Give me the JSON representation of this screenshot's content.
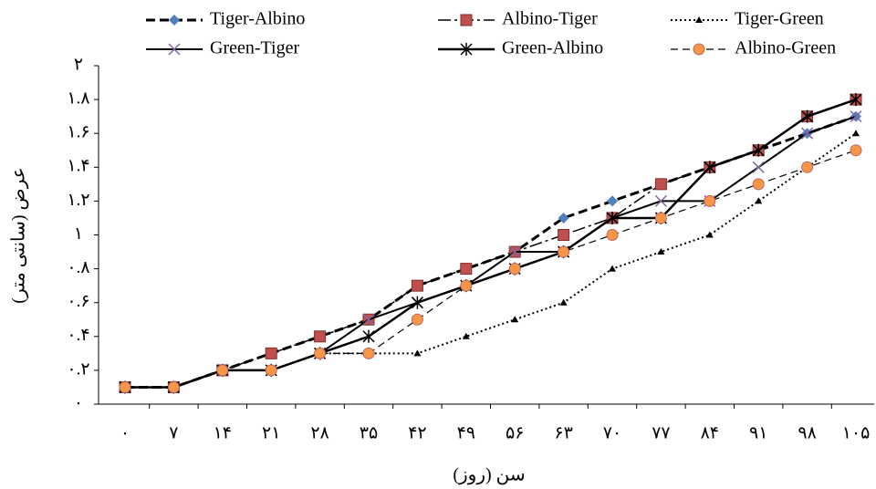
{
  "chart_data": {
    "type": "line",
    "x_label": "سن (روز)",
    "y_label": "عرض (سانتی متر)",
    "categories": [
      "۰",
      "۷",
      "۱۴",
      "۲۱",
      "۲۸",
      "۳۵",
      "۴۲",
      "۴۹",
      "۵۶",
      "۶۳",
      "۷۰",
      "۷۷",
      "۸۴",
      "۹۱",
      "۹۸",
      "۱۰۵"
    ],
    "ylim": [
      0,
      2
    ],
    "yticks": [
      {
        "value": 0,
        "label": "۰"
      },
      {
        "value": 0.2,
        "label": "۰.۲"
      },
      {
        "value": 0.4,
        "label": "۰.۴"
      },
      {
        "value": 0.6,
        "label": "۰.۶"
      },
      {
        "value": 0.8,
        "label": "۰.۸"
      },
      {
        "value": 1,
        "label": "۱"
      },
      {
        "value": 1.2,
        "label": "۱.۲"
      },
      {
        "value": 1.4,
        "label": "۱.۴"
      },
      {
        "value": 1.6,
        "label": "۱.۶"
      },
      {
        "value": 1.8,
        "label": "۱.۸"
      },
      {
        "value": 2,
        "label": "۲"
      }
    ],
    "series": [
      {
        "name": "Tiger-Albino",
        "color": "#4f81bd",
        "line": "#000",
        "dash": "10,5",
        "width": 3,
        "marker": "diamond",
        "values": [
          0.1,
          0.1,
          0.2,
          0.3,
          0.4,
          0.5,
          0.7,
          0.8,
          0.9,
          1.1,
          1.2,
          1.3,
          1.4,
          1.5,
          1.6,
          1.7
        ]
      },
      {
        "name": "Albino-Tiger",
        "color": "#c0504d",
        "line": "#000",
        "dash": "14,4,3,4",
        "width": 1.5,
        "marker": "square",
        "values": [
          0.1,
          0.1,
          0.2,
          0.3,
          0.4,
          0.5,
          0.7,
          0.8,
          0.9,
          1.0,
          1.1,
          1.3,
          1.4,
          1.5,
          1.7,
          1.8
        ]
      },
      {
        "name": "Tiger-Green",
        "color": "#000",
        "line": "#000",
        "dash": "2,3",
        "width": 2,
        "marker": "triangle",
        "values": [
          0.1,
          0.1,
          0.2,
          0.2,
          0.3,
          0.3,
          0.3,
          0.4,
          0.5,
          0.6,
          0.8,
          0.9,
          1.0,
          1.2,
          1.4,
          1.6
        ]
      },
      {
        "name": "Green-Tiger",
        "color": "#8064a2",
        "line": "#000",
        "dash": "",
        "width": 2,
        "marker": "x",
        "values": [
          0.1,
          0.1,
          0.2,
          0.2,
          0.3,
          0.5,
          0.6,
          0.7,
          0.9,
          0.9,
          1.1,
          1.2,
          1.2,
          1.4,
          1.6,
          1.7
        ]
      },
      {
        "name": "Green-Albino",
        "color": "#000",
        "line": "#000",
        "dash": "",
        "width": 2.5,
        "marker": "star",
        "values": [
          0.1,
          0.1,
          0.2,
          0.2,
          0.3,
          0.4,
          0.6,
          0.7,
          0.8,
          0.9,
          1.1,
          1.1,
          1.4,
          1.5,
          1.7,
          1.8
        ]
      },
      {
        "name": "Albino-Green",
        "color": "#f79646",
        "line": "#000",
        "dash": "8,5",
        "width": 1.2,
        "marker": "circle",
        "values": [
          0.1,
          0.1,
          0.2,
          0.2,
          0.3,
          0.3,
          0.5,
          0.7,
          0.8,
          0.9,
          1.0,
          1.1,
          1.2,
          1.3,
          1.4,
          1.5
        ]
      }
    ]
  }
}
